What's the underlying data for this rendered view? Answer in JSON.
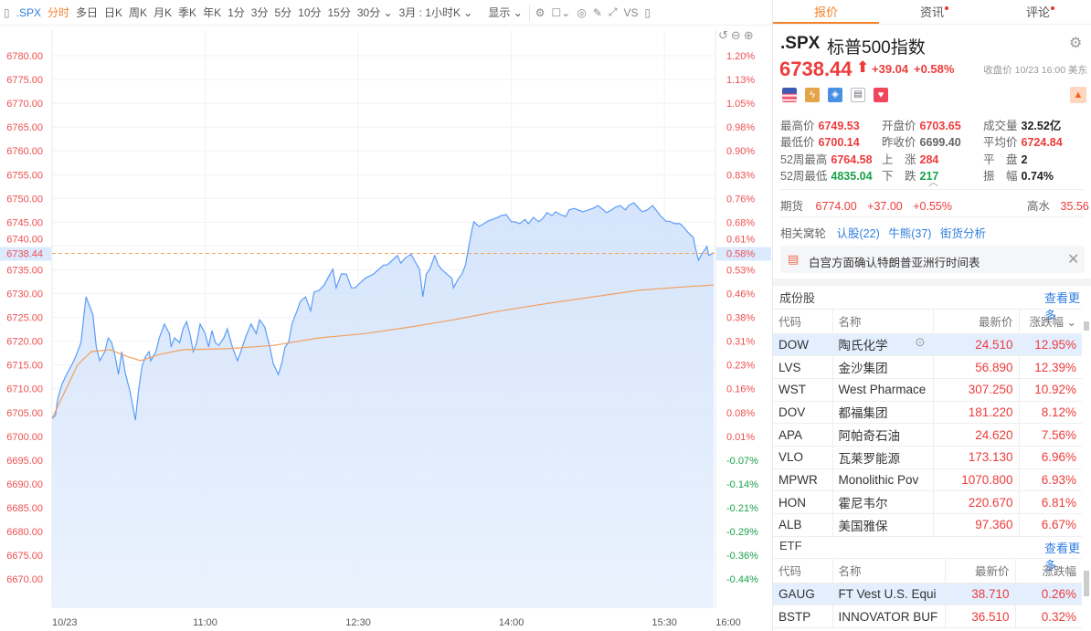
{
  "toolbar": {
    "symbol": ".SPX",
    "items": [
      "分时",
      "多日",
      "日K",
      "周K",
      "月K",
      "季K",
      "年K",
      "1分",
      "3分",
      "5分",
      "10分",
      "15分",
      "30分 ⌄",
      "3月 : 1小时K ⌄"
    ],
    "display": "显示 ⌄",
    "vs": "VS"
  },
  "tabs": [
    {
      "label": "报价",
      "dot": false
    },
    {
      "label": "资讯",
      "dot": true
    },
    {
      "label": "评论",
      "dot": true
    }
  ],
  "quote": {
    "symbol": ".SPX",
    "name": "标普500指数",
    "price": "6738.44",
    "change": "+39.04",
    "change_pct": "+0.58%",
    "close_info": "收盘价 10/23 16:00 美东",
    "stats": [
      [
        {
          "label": "最高价",
          "value": "6749.53",
          "color": "red"
        },
        {
          "label": "开盘价",
          "value": "6703.65",
          "color": "red"
        },
        {
          "label": "成交量",
          "value": "32.52亿",
          "color": "dark"
        }
      ],
      [
        {
          "label": "最低价",
          "value": "6700.14",
          "color": "red"
        },
        {
          "label": "昨收价",
          "value": "6699.40",
          "color": "gray"
        },
        {
          "label": "平均价",
          "value": "6724.84",
          "color": "red"
        }
      ],
      [
        {
          "label": "52周最高",
          "value": "6764.58",
          "color": "red"
        },
        {
          "label": "上　涨",
          "value": "284",
          "color": "red"
        },
        {
          "label": "平　盘",
          "value": "2",
          "color": "dark"
        }
      ],
      [
        {
          "label": "52周最低",
          "value": "4835.04",
          "color": "green"
        },
        {
          "label": "下　跌",
          "value": "217",
          "color": "green"
        },
        {
          "label": "振　幅",
          "value": "0.74%",
          "color": "dark"
        }
      ]
    ],
    "futures": {
      "label": "期货",
      "price": "6774.00",
      "change": "+37.00",
      "pct": "+0.55%",
      "premium_label": "高水",
      "premium": "35.56"
    },
    "warrants": {
      "label": "相关窝轮",
      "links": [
        "认股(22)",
        "牛熊(37)",
        "街货分析"
      ]
    },
    "news": "白宫方面确认特朗普亚洲行时间表"
  },
  "constituents": {
    "title": "成份股",
    "more": "查看更多",
    "headers": [
      "代码",
      "名称",
      "最新价",
      "涨跌幅 ⌄"
    ],
    "rows": [
      [
        "DOW",
        "陶氏化学",
        "24.510",
        "12.95%"
      ],
      [
        "LVS",
        "金沙集团",
        "56.890",
        "12.39%"
      ],
      [
        "WST",
        "West Pharmace",
        "307.250",
        "10.92%"
      ],
      [
        "DOV",
        "都福集团",
        "181.220",
        "8.12%"
      ],
      [
        "APA",
        "阿帕奇石油",
        "24.620",
        "7.56%"
      ],
      [
        "VLO",
        "瓦莱罗能源",
        "173.130",
        "6.96%"
      ],
      [
        "MPWR",
        "Monolithic Pov",
        "1070.800",
        "6.93%"
      ],
      [
        "HON",
        "霍尼韦尔",
        "220.670",
        "6.81%"
      ],
      [
        "ALB",
        "美国雅保",
        "97.360",
        "6.67%"
      ]
    ]
  },
  "etf": {
    "title": "ETF",
    "more": "查看更多",
    "headers": [
      "代码",
      "名称",
      "最新价",
      "涨跌幅"
    ],
    "rows": [
      [
        "GAUG",
        "FT Vest U.S. Equi",
        "38.710",
        "0.26%"
      ],
      [
        "BSTP",
        "INNOVATOR BUF",
        "36.510",
        "0.32%"
      ]
    ]
  },
  "chart_data": {
    "type": "line",
    "title": "",
    "xlabel": "",
    "ylabel": "",
    "x_unit": "minutes since 09:30",
    "xlim": [
      0,
      390
    ],
    "ylim": [
      6667,
      6789
    ],
    "x_ticks": [
      {
        "m": 0,
        "label": "10/23"
      },
      {
        "m": 90,
        "label": "11:00"
      },
      {
        "m": 180,
        "label": "12:30"
      },
      {
        "m": 270,
        "label": "14:00"
      },
      {
        "m": 360,
        "label": "15:30"
      },
      {
        "m": 390,
        "label": "16:00"
      }
    ],
    "y_ticks": [
      6780,
      6775,
      6770,
      6765,
      6760,
      6755,
      6750,
      6745,
      6740,
      6735,
      6730,
      6725,
      6720,
      6715,
      6710,
      6705,
      6700,
      6695,
      6690,
      6685,
      6680,
      6675,
      6670
    ],
    "y_tick_labels": [
      "6780.00",
      "6775.00",
      "6770.00",
      "6765.00",
      "6760.00",
      "6755.00",
      "6750.00",
      "6745.00",
      "6740.00",
      "6735.00",
      "6730.00",
      "6725.00",
      "6720.00",
      "6715.00",
      "6710.00",
      "6705.00",
      "6700.00",
      "6695.00",
      "6690.00",
      "6685.00",
      "6680.00",
      "6675.00",
      "6670.00"
    ],
    "pct_labels": [
      "1.20%",
      "1.13%",
      "1.05%",
      "0.98%",
      "0.90%",
      "0.83%",
      "0.76%",
      "0.68%",
      "0.61%",
      "0.53%",
      "0.46%",
      "0.38%",
      "0.31%",
      "0.23%",
      "0.16%",
      "0.08%",
      "0.01%",
      "-0.07%",
      "-0.14%",
      "-0.21%",
      "-0.29%",
      "-0.36%",
      "-0.44%"
    ],
    "current": {
      "price": 6738.44,
      "label": "6738.44",
      "pct": "0.58%"
    },
    "series": [
      {
        "name": "price",
        "color": "#5a9cf8",
        "points": [
          [
            0,
            6703.8
          ],
          [
            2,
            6704.4
          ],
          [
            3,
            6707.2
          ],
          [
            4,
            6708.8
          ],
          [
            6,
            6711.1
          ],
          [
            8,
            6712.6
          ],
          [
            10,
            6714.0
          ],
          [
            12,
            6715.3
          ],
          [
            14,
            6716.9
          ],
          [
            17,
            6719.7
          ],
          [
            19,
            6726.4
          ],
          [
            20,
            6729.3
          ],
          [
            22,
            6727.4
          ],
          [
            24,
            6725.5
          ],
          [
            26,
            6718.8
          ],
          [
            28,
            6715.9
          ],
          [
            31,
            6717.8
          ],
          [
            33,
            6720.7
          ],
          [
            35,
            6719.7
          ],
          [
            37,
            6716.9
          ],
          [
            39,
            6713.0
          ],
          [
            41,
            6717.8
          ],
          [
            43,
            6713.4
          ],
          [
            46,
            6709.2
          ],
          [
            49,
            6703.4
          ],
          [
            51,
            6710.1
          ],
          [
            53,
            6714.9
          ],
          [
            55,
            6716.8
          ],
          [
            57,
            6717.8
          ],
          [
            58,
            6715.9
          ],
          [
            61,
            6717.8
          ],
          [
            63,
            6720.7
          ],
          [
            66,
            6723.6
          ],
          [
            69,
            6721.6
          ],
          [
            70,
            6718.8
          ],
          [
            72,
            6720.7
          ],
          [
            75,
            6719.7
          ],
          [
            77,
            6722.6
          ],
          [
            79,
            6724.1
          ],
          [
            81,
            6721.6
          ],
          [
            83,
            6717.8
          ],
          [
            85,
            6719.7
          ],
          [
            87,
            6723.6
          ],
          [
            90,
            6721.6
          ],
          [
            92,
            6718.8
          ],
          [
            94,
            6722.2
          ],
          [
            96,
            6719.7
          ],
          [
            98,
            6719.1
          ],
          [
            101,
            6720.7
          ],
          [
            103,
            6722.6
          ],
          [
            106,
            6718.8
          ],
          [
            109,
            6715.9
          ],
          [
            111,
            6717.8
          ],
          [
            114,
            6721.1
          ],
          [
            117,
            6723.6
          ],
          [
            120,
            6721.6
          ],
          [
            122,
            6724.5
          ],
          [
            125,
            6723.0
          ],
          [
            128,
            6718.8
          ],
          [
            130,
            6715.3
          ],
          [
            133,
            6713.0
          ],
          [
            135,
            6715.3
          ],
          [
            137,
            6718.8
          ],
          [
            139,
            6719.7
          ],
          [
            141,
            6723.6
          ],
          [
            144,
            6726.4
          ],
          [
            146,
            6728.4
          ],
          [
            149,
            6729.3
          ],
          [
            152,
            6726.4
          ],
          [
            154,
            6730.3
          ],
          [
            157,
            6730.7
          ],
          [
            160,
            6731.8
          ],
          [
            162,
            6733.2
          ],
          [
            165,
            6735.1
          ],
          [
            167,
            6731.2
          ],
          [
            170,
            6734.1
          ],
          [
            173,
            6734.1
          ],
          [
            176,
            6731.2
          ],
          [
            178,
            6731.2
          ],
          [
            181,
            6732.2
          ],
          [
            184,
            6733.2
          ],
          [
            189,
            6734.1
          ],
          [
            192,
            6735.1
          ],
          [
            195,
            6736.0
          ],
          [
            197,
            6736.0
          ],
          [
            200,
            6737.0
          ],
          [
            203,
            6738.0
          ],
          [
            205,
            6736.4
          ],
          [
            208,
            6737.6
          ],
          [
            211,
            6738.3
          ],
          [
            213,
            6737.0
          ],
          [
            216,
            6735.1
          ],
          [
            218,
            6729.3
          ],
          [
            220,
            6734.1
          ],
          [
            222,
            6735.1
          ],
          [
            225,
            6738.0
          ],
          [
            227,
            6736.0
          ],
          [
            229,
            6735.1
          ],
          [
            232,
            6734.1
          ],
          [
            235,
            6733.2
          ],
          [
            236,
            6731.2
          ],
          [
            239,
            6733.2
          ],
          [
            241,
            6734.1
          ],
          [
            243,
            6736.0
          ],
          [
            245,
            6739.9
          ],
          [
            247,
            6743.7
          ],
          [
            248,
            6745.1
          ],
          [
            251,
            6744.1
          ],
          [
            254,
            6744.7
          ],
          [
            256,
            6745.2
          ],
          [
            259,
            6745.6
          ],
          [
            262,
            6746.0
          ],
          [
            264,
            6746.4
          ],
          [
            267,
            6746.6
          ],
          [
            270,
            6745.1
          ],
          [
            272,
            6745.1
          ],
          [
            275,
            6744.7
          ],
          [
            278,
            6745.6
          ],
          [
            280,
            6744.7
          ],
          [
            283,
            6746.0
          ],
          [
            286,
            6745.1
          ],
          [
            288,
            6745.6
          ],
          [
            291,
            6747.0
          ],
          [
            294,
            6746.4
          ],
          [
            296,
            6747.2
          ],
          [
            299,
            6746.6
          ],
          [
            302,
            6746.2
          ],
          [
            304,
            6747.6
          ],
          [
            307,
            6747.9
          ],
          [
            312,
            6747.2
          ],
          [
            318,
            6747.9
          ],
          [
            321,
            6748.5
          ],
          [
            323,
            6747.9
          ],
          [
            326,
            6747.0
          ],
          [
            329,
            6747.6
          ],
          [
            331,
            6748.1
          ],
          [
            334,
            6748.5
          ],
          [
            337,
            6747.6
          ],
          [
            339,
            6748.5
          ],
          [
            342,
            6749.1
          ],
          [
            345,
            6747.9
          ],
          [
            347,
            6747.2
          ],
          [
            350,
            6747.6
          ],
          [
            353,
            6748.5
          ],
          [
            355,
            6747.6
          ],
          [
            358,
            6746.2
          ],
          [
            361,
            6745.2
          ],
          [
            363,
            6745.2
          ],
          [
            366,
            6744.7
          ],
          [
            369,
            6744.7
          ],
          [
            371,
            6744.1
          ],
          [
            374,
            6742.8
          ],
          [
            377,
            6741.8
          ],
          [
            378,
            6739.9
          ],
          [
            380,
            6737.0
          ],
          [
            382,
            6738.3
          ],
          [
            385,
            6739.9
          ],
          [
            386,
            6738.0
          ],
          [
            389,
            6738.6
          ]
        ]
      },
      {
        "name": "average",
        "color": "#f0a060",
        "points": [
          [
            0,
            6703.8
          ],
          [
            15,
            6715.0
          ],
          [
            23,
            6717.8
          ],
          [
            34,
            6718.2
          ],
          [
            44,
            6716.8
          ],
          [
            52,
            6715.9
          ],
          [
            63,
            6717.2
          ],
          [
            77,
            6718.2
          ],
          [
            103,
            6718.4
          ],
          [
            130,
            6719.1
          ],
          [
            157,
            6720.7
          ],
          [
            184,
            6721.6
          ],
          [
            211,
            6723.0
          ],
          [
            236,
            6724.5
          ],
          [
            264,
            6726.4
          ],
          [
            291,
            6727.9
          ],
          [
            318,
            6729.3
          ],
          [
            345,
            6730.7
          ],
          [
            371,
            6731.4
          ],
          [
            389,
            6731.8
          ]
        ]
      }
    ]
  }
}
